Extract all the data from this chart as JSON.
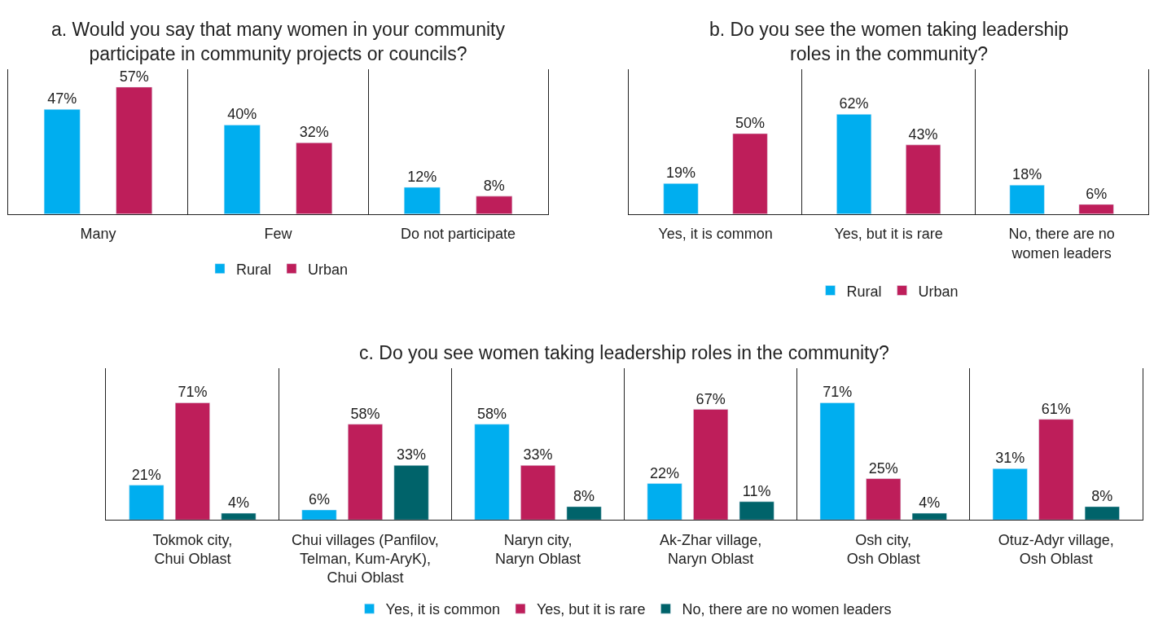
{
  "chart_data": [
    {
      "type": "bar",
      "title": "a. Would you say that many women in your community\nparticipate in community projects or councils?",
      "categories": [
        "Many",
        "Few",
        "Do not participate"
      ],
      "series": [
        {
          "name": "Rural",
          "color": "#00aeef",
          "values": [
            47,
            40,
            12
          ],
          "value_labels": [
            "47%",
            "40%",
            "12%"
          ]
        },
        {
          "name": "Urban",
          "color": "#be1e5a",
          "values": [
            57,
            32,
            8
          ],
          "value_labels": [
            "57%",
            "32%",
            "8%"
          ]
        }
      ],
      "ylim": [
        0,
        65
      ],
      "tick_labels": "x",
      "grid": "x",
      "legend": "bottom"
    },
    {
      "type": "bar",
      "title": "b. Do you see the women taking leadership\nroles in the community?",
      "categories": [
        "Yes, it is common",
        "Yes, but it is rare",
        "No, there are no\nwomen leaders"
      ],
      "series": [
        {
          "name": "Rural",
          "color": "#00aeef",
          "values": [
            19,
            62,
            18
          ],
          "value_labels": [
            "19%",
            "62%",
            "18%"
          ]
        },
        {
          "name": "Urban",
          "color": "#be1e5a",
          "values": [
            50,
            43,
            6
          ],
          "value_labels": [
            "50%",
            "43%",
            "6%"
          ]
        }
      ],
      "ylim": [
        0,
        90
      ],
      "tick_labels": "x",
      "grid": "x",
      "legend": "bottom"
    },
    {
      "type": "bar",
      "title": "c. Do you see women taking leadership roles in the community?",
      "categories": [
        "Tokmok city,\nChui Oblast",
        "Chui villages (Panfilov,\nTelman, Kum-AryK),\nChui Oblast",
        "Naryn city,\nNaryn Oblast",
        "Ak-Zhar village,\nNaryn Oblast",
        "Osh city,\nOsh Oblast",
        "Otuz-Adyr village,\nOsh Oblast"
      ],
      "series": [
        {
          "name": "Yes, it is common",
          "color": "#00aeef",
          "values": [
            21,
            6,
            58,
            22,
            71,
            31
          ],
          "value_labels": [
            "21%",
            "6%",
            "58%",
            "22%",
            "71%",
            "31%"
          ]
        },
        {
          "name": "Yes, but it is rare",
          "color": "#be1e5a",
          "values": [
            71,
            58,
            33,
            67,
            25,
            61
          ],
          "value_labels": [
            "71%",
            "58%",
            "33%",
            "67%",
            "25%",
            "61%"
          ]
        },
        {
          "name": "No, there are no women leaders",
          "color": "#00636a",
          "values": [
            4,
            33,
            8,
            11,
            4,
            8
          ],
          "value_labels": [
            "4%",
            "33%",
            "8%",
            "11%",
            "4%",
            "8%"
          ]
        }
      ],
      "ylim": [
        0,
        92
      ],
      "tick_labels": "x",
      "grid": "x",
      "legend": "bottom"
    }
  ]
}
